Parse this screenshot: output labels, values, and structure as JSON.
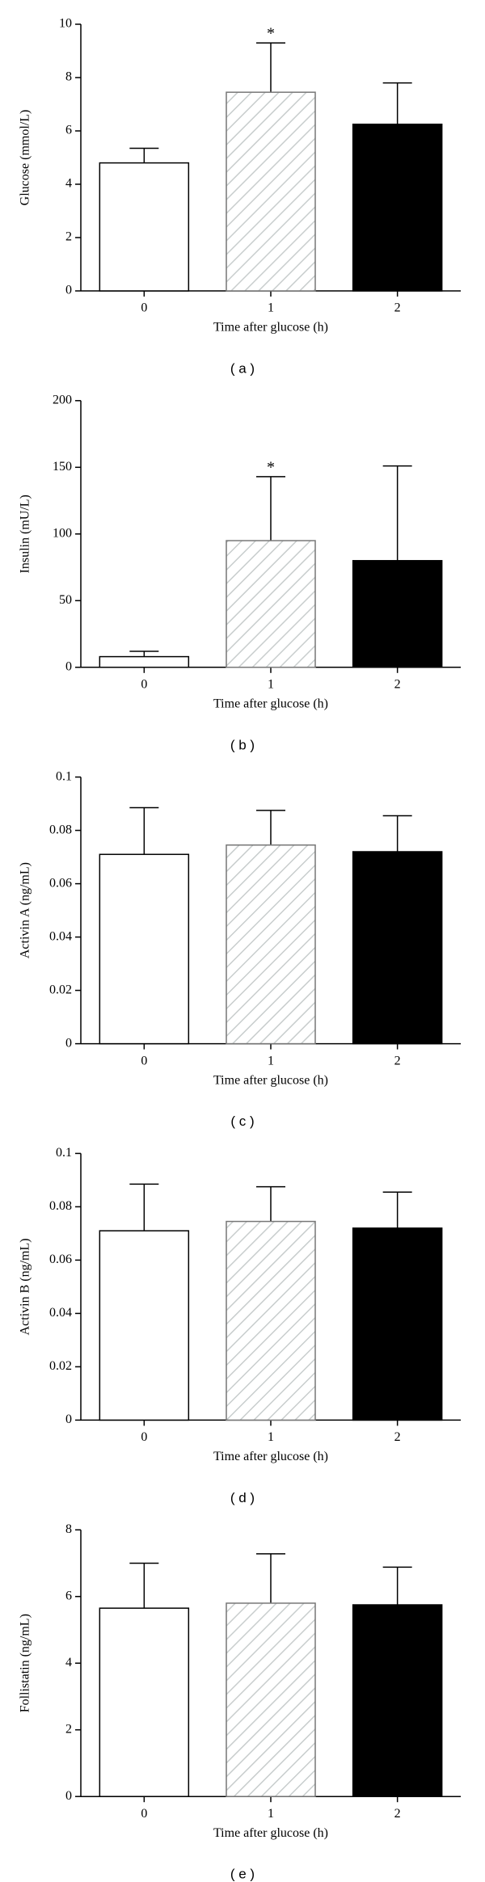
{
  "chart_data": [
    {
      "type": "bar",
      "y_label": "Glucose (mmol/L)",
      "x_label": "Time after glucose (h)",
      "caption": "( a )",
      "categories": [
        "0",
        "1",
        "2"
      ],
      "values": [
        4.8,
        7.45,
        6.25
      ],
      "errors": [
        0.55,
        1.85,
        1.55
      ],
      "annotations": [
        null,
        "*",
        null
      ],
      "fills": [
        "#ffffff",
        "hatch",
        "#000000"
      ],
      "ylim": [
        0,
        10
      ],
      "yticks": [
        0,
        2,
        4,
        6,
        8,
        10
      ]
    },
    {
      "type": "bar",
      "y_label": "Insulin (mU/L)",
      "x_label": "Time after glucose (h)",
      "caption": "( b )",
      "categories": [
        "0",
        "1",
        "2"
      ],
      "values": [
        8,
        95,
        80
      ],
      "errors": [
        4,
        48,
        71
      ],
      "annotations": [
        null,
        "*",
        null
      ],
      "fills": [
        "#ffffff",
        "hatch",
        "#000000"
      ],
      "ylim": [
        0,
        200
      ],
      "yticks": [
        0,
        50,
        100,
        150,
        200
      ]
    },
    {
      "type": "bar",
      "y_label": "Activin A (ng/mL)",
      "x_label": "Time after glucose (h)",
      "caption": "( c )",
      "categories": [
        "0",
        "1",
        "2"
      ],
      "values": [
        0.071,
        0.0745,
        0.072
      ],
      "errors": [
        0.0175,
        0.013,
        0.0135
      ],
      "fills": [
        "#ffffff",
        "hatch",
        "#000000"
      ],
      "ylim": [
        0,
        0.1
      ],
      "yticks": [
        0,
        0.02,
        0.04,
        0.06,
        0.08,
        0.1
      ]
    },
    {
      "type": "bar",
      "y_label": "Activin B (ng/mL)",
      "x_label": "Time after glucose (h)",
      "caption": "( d )",
      "categories": [
        "0",
        "1",
        "2"
      ],
      "values": [
        0.071,
        0.0745,
        0.072
      ],
      "errors": [
        0.0175,
        0.013,
        0.0135
      ],
      "fills": [
        "#ffffff",
        "hatch",
        "#000000"
      ],
      "ylim": [
        0,
        0.1
      ],
      "yticks": [
        0,
        0.02,
        0.04,
        0.06,
        0.08,
        0.1
      ]
    },
    {
      "type": "bar",
      "y_label": "Follistatin (ng/mL)",
      "x_label": "Time after glucose (h)",
      "caption": "( e )",
      "categories": [
        "0",
        "1",
        "2"
      ],
      "values": [
        5.65,
        5.8,
        5.75
      ],
      "errors": [
        1.35,
        1.48,
        1.13
      ],
      "fills": [
        "#ffffff",
        "hatch",
        "#000000"
      ],
      "ylim": [
        0,
        8
      ],
      "yticks": [
        0,
        2,
        4,
        6,
        8
      ]
    }
  ]
}
